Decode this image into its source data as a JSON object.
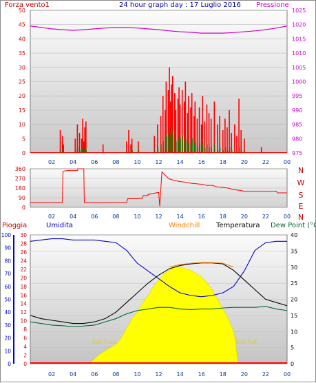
{
  "header": {
    "left_label": "Forza vento1",
    "title": "24 hour graph day : 17 Luglio 2016",
    "right_label": "Pressione"
  },
  "legend": {
    "rain": "Pioggia",
    "humidity": "Umidita",
    "windchill": "Windchill",
    "temperature": "Temperatura",
    "dewpoint": "Dew Point (°C"
  },
  "annotations": {
    "sunrise": "Sun Rise",
    "sunset": "Sun Set"
  },
  "colors": {
    "wind": "#ff0000",
    "pressure": "#cc00cc",
    "direction": "#ff0000",
    "rain": "#ff0000",
    "humidity": "#0000dd",
    "windchill": "#ff8000",
    "temperature": "#000000",
    "dewpoint": "#006633",
    "solar": "#ffff00",
    "axis_left_top": "#cc0000",
    "axis_right_top": "#cc00cc",
    "axis_left_bottom_rain": "#cc0000",
    "axis_left_bottom_hum": "#0000cc",
    "compass": "#cc0000"
  },
  "chart_data": [
    {
      "type": "bar",
      "panel": "wind",
      "x_hours": [
        2.8,
        3.0,
        3.1,
        4.2,
        4.4,
        4.6,
        4.8,
        4.9,
        5.0,
        5.1,
        5.2,
        6.8,
        9.0,
        9.2,
        9.4,
        9.5,
        10.1,
        11.6,
        11.9,
        12.2,
        12.4,
        12.6,
        12.7,
        12.9,
        13.0,
        13.1,
        13.2,
        13.3,
        13.5,
        13.6,
        13.8,
        13.9,
        14.0,
        14.2,
        14.4,
        14.5,
        14.7,
        14.8,
        15.0,
        15.1,
        15.3,
        15.4,
        15.6,
        15.8,
        16.0,
        16.1,
        16.3,
        16.5,
        16.7,
        16.9,
        17.2,
        17.5,
        17.7,
        18.0,
        18.2,
        18.4,
        18.6,
        18.8,
        19.1,
        19.3,
        19.5,
        19.7,
        20.0,
        21.6
      ],
      "gust": [
        8,
        6,
        3,
        5,
        10,
        7,
        5,
        12,
        4,
        9,
        11,
        3,
        4,
        8,
        3,
        5,
        4,
        6,
        10,
        13,
        20,
        15,
        25,
        22,
        30,
        18,
        24,
        27,
        21,
        15,
        19,
        23,
        17,
        22,
        18,
        25,
        14,
        20,
        16,
        21,
        13,
        18,
        12,
        16,
        10,
        20,
        11,
        17,
        14,
        12,
        18,
        10,
        13,
        8,
        12,
        9,
        15,
        7,
        10,
        6,
        19,
        8,
        5,
        2
      ],
      "average": [
        1,
        1,
        0,
        1,
        2,
        1,
        1,
        2,
        1,
        2,
        1,
        0,
        1,
        1,
        0,
        1,
        1,
        1,
        2,
        3,
        4,
        5,
        6,
        7,
        9,
        6,
        8,
        7,
        6,
        4,
        5,
        6,
        5,
        6,
        4,
        5,
        3,
        4,
        4,
        5,
        3,
        4,
        2,
        3,
        2,
        4,
        2,
        3,
        2,
        2,
        3,
        1,
        2,
        1,
        2,
        1,
        2,
        1,
        1,
        1,
        2,
        1,
        1,
        0
      ],
      "ylim": [
        0,
        50
      ],
      "yticks": [
        0,
        5,
        10,
        15,
        20,
        25,
        30,
        35,
        40,
        45,
        50
      ],
      "series_name": "Forza vento1"
    },
    {
      "type": "line",
      "panel": "pressure",
      "x_hours": [
        0,
        1,
        2,
        3,
        4,
        5,
        6,
        7,
        8,
        9,
        10,
        11,
        12,
        13,
        14,
        15,
        16,
        17,
        18,
        19,
        20,
        21,
        22,
        23,
        24
      ],
      "values": [
        1019.5,
        1019,
        1018.5,
        1018.2,
        1018,
        1018.2,
        1018.5,
        1018.8,
        1019,
        1019,
        1018.8,
        1018.5,
        1018.2,
        1017.8,
        1017.5,
        1017.3,
        1017,
        1017,
        1017,
        1017.2,
        1017.5,
        1017.8,
        1018.2,
        1018.8,
        1019.5
      ],
      "ylim": [
        975,
        1025
      ],
      "yticks": [
        975,
        980,
        985,
        990,
        995,
        1000,
        1005,
        1010,
        1015,
        1020,
        1025
      ],
      "series_name": "Pressione"
    },
    {
      "type": "line",
      "panel": "direction",
      "x_hours": [
        0,
        1,
        2,
        3,
        3.05,
        3.2,
        3.6,
        4,
        4.4,
        4.45,
        5,
        5.05,
        6,
        7,
        8,
        9,
        9.1,
        10,
        10.5,
        10.55,
        11,
        11,
        12,
        12.1,
        12.3,
        12.6,
        13,
        13.5,
        14,
        14.5,
        15,
        15.5,
        16,
        16.5,
        17,
        17.5,
        18,
        18.5,
        19,
        19.5,
        20,
        21,
        22,
        23,
        23.1,
        24
      ],
      "values": [
        45,
        45,
        45,
        45,
        335,
        340,
        345,
        345,
        345,
        360,
        360,
        45,
        45,
        45,
        45,
        45,
        80,
        80,
        85,
        110,
        110,
        120,
        140,
        10,
        330,
        300,
        265,
        250,
        240,
        235,
        225,
        220,
        215,
        205,
        205,
        190,
        185,
        180,
        165,
        160,
        150,
        150,
        150,
        150,
        135,
        135
      ],
      "ylim": [
        0,
        360
      ],
      "yticks": [
        0,
        90,
        180,
        270,
        360
      ],
      "compass": [
        "N",
        "W",
        "S",
        "E",
        "N"
      ]
    },
    {
      "type": "area",
      "panel": "solar",
      "x_hours": [
        5.5,
        6,
        6.5,
        7,
        7.5,
        8,
        8.5,
        9,
        9.5,
        10,
        10.5,
        11,
        11.5,
        12,
        12.5,
        13,
        13.5,
        14,
        14.5,
        15,
        15.5,
        16,
        16.5,
        17,
        17.5,
        18,
        18.5,
        19,
        19.2,
        19.4
      ],
      "values": [
        0,
        1.5,
        3,
        4,
        5,
        6,
        8,
        11,
        14,
        16,
        19,
        21,
        24,
        26,
        28,
        29,
        30,
        30,
        29.5,
        29,
        28,
        27,
        25,
        23,
        20,
        17,
        14,
        10,
        6,
        0
      ]
    },
    {
      "type": "line",
      "panel": "climate",
      "x_hours": [
        0,
        1,
        2,
        3,
        4,
        5,
        6,
        7,
        8,
        9,
        10,
        11,
        12,
        13,
        14,
        15,
        16,
        17,
        18,
        19,
        20,
        21,
        22,
        23,
        24
      ],
      "series": [
        {
          "name": "Umidita",
          "axis": "humidity",
          "values": [
            95,
            96,
            97,
            97,
            96,
            96,
            96,
            95,
            94,
            88,
            78,
            72,
            66,
            60,
            55,
            53,
            52,
            53,
            55,
            60,
            72,
            88,
            94,
            95,
            95
          ]
        },
        {
          "name": "Temperatura",
          "axis": "temperature",
          "values": [
            15,
            14,
            13.5,
            13,
            12.5,
            12.5,
            13,
            14,
            16,
            19,
            22,
            25,
            27.5,
            29.5,
            30.5,
            31,
            31.3,
            31.3,
            31,
            29,
            26,
            23,
            20,
            19,
            18
          ]
        },
        {
          "name": "Windchill",
          "axis": "temperature",
          "values": [
            null,
            null,
            null,
            null,
            null,
            null,
            null,
            null,
            null,
            null,
            null,
            null,
            null,
            30,
            30.8,
            31.2,
            31.4,
            31.4,
            31.2,
            30,
            null,
            null,
            null,
            null,
            null
          ]
        },
        {
          "name": "Dew Point (°C",
          "axis": "temperature",
          "values": [
            13,
            12.5,
            12,
            11.8,
            11.5,
            11.7,
            12,
            13,
            14,
            15.5,
            16.5,
            17,
            17.5,
            17.5,
            17,
            16.8,
            17,
            17,
            17.3,
            17.5,
            17.5,
            17.5,
            17.8,
            17,
            16.5
          ]
        }
      ],
      "rain_values": [
        0,
        0,
        0,
        0,
        0,
        0,
        0,
        0,
        0,
        0,
        0,
        0,
        0,
        0,
        0,
        0,
        0,
        0,
        0,
        0,
        0,
        0,
        0,
        0,
        0
      ],
      "rain_ylim": [
        0,
        30
      ],
      "rain_yticks": [
        0,
        2,
        4,
        6,
        8,
        10,
        12,
        14,
        16,
        18,
        20,
        22,
        24,
        26,
        28,
        30
      ],
      "humidity_ylim": [
        0,
        100
      ],
      "humidity_yticks": [
        0,
        10,
        20,
        30,
        40,
        50,
        60,
        70,
        80,
        90,
        100
      ],
      "temperature_ylim": [
        0,
        40
      ],
      "temperature_yticks": [
        0,
        5,
        10,
        15,
        20,
        25,
        30,
        35,
        40
      ]
    }
  ],
  "x_axis": {
    "ticks": [
      "02",
      "04",
      "06",
      "08",
      "10",
      "12",
      "14",
      "16",
      "18",
      "20",
      "22",
      "00"
    ]
  }
}
